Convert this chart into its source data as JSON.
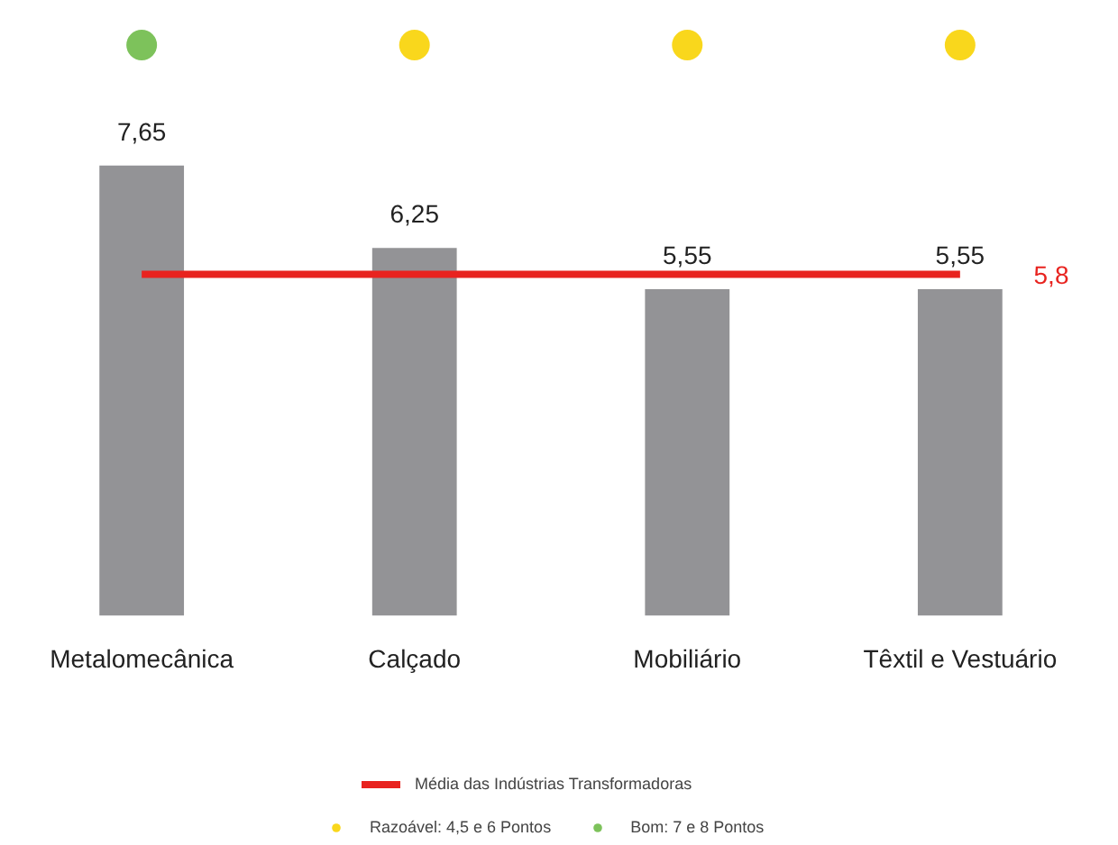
{
  "chart_data": {
    "type": "bar",
    "categories": [
      "Metalomecânica",
      "Calçado",
      "Mobiliário",
      "Têxtil e Vestuário"
    ],
    "series": [
      {
        "color": "#939396",
        "values": [
          7.65,
          6.25,
          5.55,
          5.55
        ],
        "value_labels": [
          "7,65",
          "6,25",
          "5,55",
          "5,55"
        ]
      },
      {
        "type": "scatter",
        "name": "Razoável: 4,5 e 6 Pontos",
        "color": "#f9d71c",
        "x": [
          "Metalomecânica",
          "Calçado",
          "Mobiliário",
          "Têxtil e Vestuário"
        ],
        "values": [
          null,
          9.7,
          9.7,
          9.7
        ]
      },
      {
        "type": "scatter",
        "name": "Bom: 7 e 8 Pontos",
        "color": "#7dc25b",
        "x": [
          "Metalomecânica",
          "Calçado",
          "Mobiliário",
          "Têxtil e Vestuário"
        ],
        "values": [
          9.7,
          null,
          null,
          null
        ]
      }
    ],
    "ref_lines": [
      {
        "axis": "y",
        "value": 5.8,
        "label": "Média das Indústrias Transformadoras",
        "color": "#e8231f"
      }
    ],
    "annotations": [
      "5,8"
    ],
    "marker": "circle",
    "legend": "bottom"
  }
}
